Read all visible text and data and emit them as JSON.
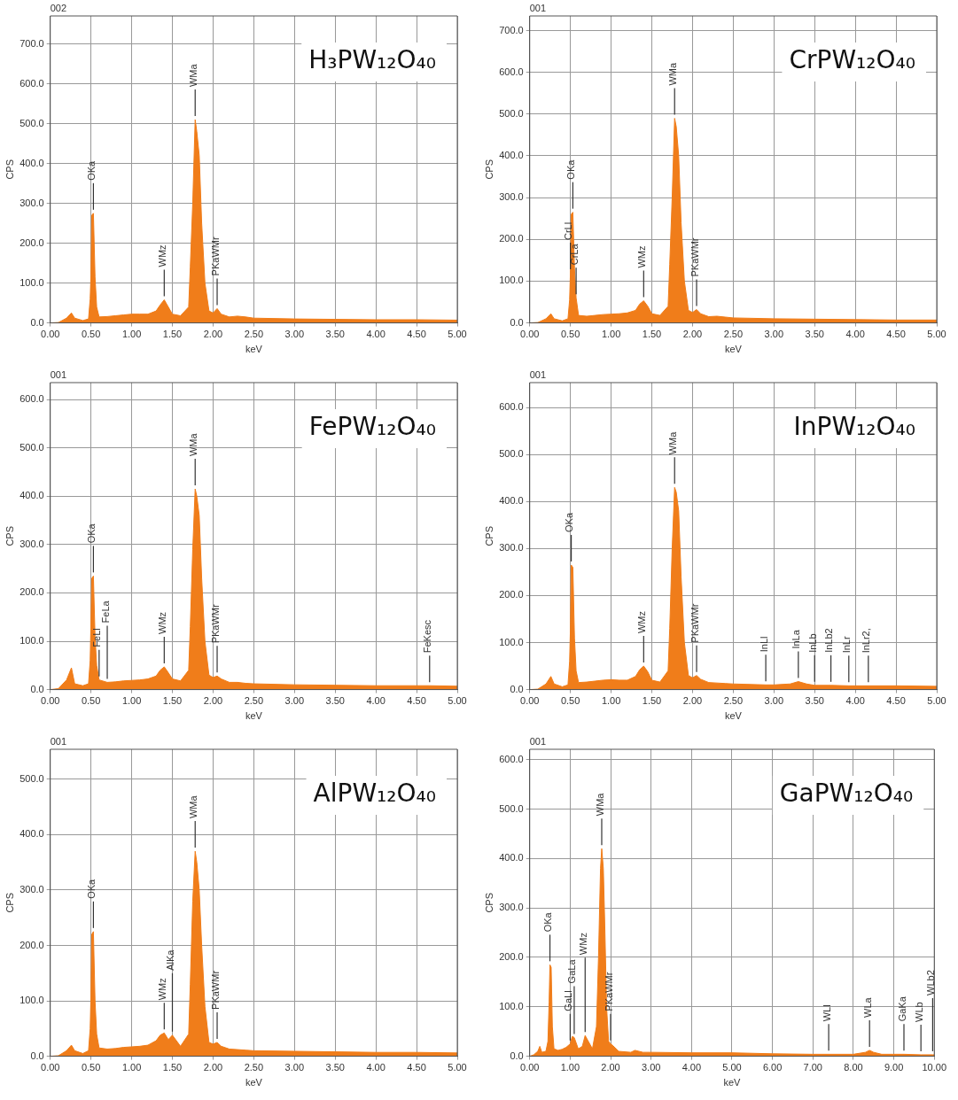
{
  "chart_data": [
    {
      "type": "area",
      "title": "H₃PW₁₂O₄₀",
      "xlabel": "keV",
      "ylabel": "CPS",
      "grid": true,
      "xlim": [
        0,
        5
      ],
      "ylim": [
        0,
        770
      ],
      "xticks": [
        {
          "value": 0,
          "label": "0.00"
        },
        {
          "value": 0.5,
          "label": "0.50"
        },
        {
          "value": 1,
          "label": "1.00"
        },
        {
          "value": 1.5,
          "label": "1.50"
        },
        {
          "value": 2,
          "label": "2.00"
        },
        {
          "value": 2.5,
          "label": "2.50"
        },
        {
          "value": 3,
          "label": "3.00"
        },
        {
          "value": 3.5,
          "label": "3.50"
        },
        {
          "value": 4,
          "label": "4.00"
        },
        {
          "value": 4.5,
          "label": "4.50"
        },
        {
          "value": 5,
          "label": "5.00"
        }
      ],
      "yticks": [
        {
          "value": 0,
          "label": "0.0"
        },
        {
          "value": 100,
          "label": "100.0"
        },
        {
          "value": 200,
          "label": "200.0"
        },
        {
          "value": 300,
          "label": "300.0"
        },
        {
          "value": 400,
          "label": "400.0"
        },
        {
          "value": 500,
          "label": "500.0"
        },
        {
          "value": 600,
          "label": "600.0"
        },
        {
          "value": 700,
          "label": "700.0"
        }
      ],
      "x": [
        0,
        0.1,
        0.2,
        0.26,
        0.3,
        0.4,
        0.47,
        0.49,
        0.5,
        0.51,
        0.53,
        0.55,
        0.57,
        0.6,
        0.7,
        0.8,
        0.9,
        1.0,
        1.1,
        1.2,
        1.3,
        1.35,
        1.4,
        1.45,
        1.5,
        1.6,
        1.7,
        1.72,
        1.75,
        1.78,
        1.8,
        1.83,
        1.86,
        1.9,
        1.95,
        2.0,
        2.05,
        2.1,
        2.2,
        2.3,
        2.4,
        2.5,
        3.0,
        3.5,
        4.0,
        4.5,
        5.0
      ],
      "series": [
        {
          "color": "#f07d1a",
          "values": [
            0,
            1,
            12,
            25,
            12,
            6,
            10,
            60,
            120,
            270,
            275,
            115,
            40,
            15,
            16,
            18,
            20,
            22,
            22,
            22,
            30,
            45,
            58,
            40,
            22,
            18,
            40,
            140,
            300,
            510,
            480,
            420,
            250,
            100,
            30,
            25,
            36,
            22,
            15,
            17,
            15,
            12,
            10,
            9,
            8,
            8,
            7
          ]
        }
      ],
      "annotations": [
        "002",
        {
          "text": "OKa",
          "x": 0.53,
          "y": 275
        },
        {
          "text": "WMz",
          "x": 1.4,
          "y": 58
        },
        {
          "text": "WMa",
          "x": 1.78,
          "y": 510
        },
        {
          "text": "PKaWMr",
          "x": 2.05,
          "y": 36
        }
      ]
    },
    {
      "type": "area",
      "title": "CrPW₁₂O₄₀",
      "xlabel": "keV",
      "ylabel": "CPS",
      "grid": true,
      "xlim": [
        0,
        5
      ],
      "ylim": [
        0,
        735
      ],
      "xticks": [
        {
          "value": 0,
          "label": "0.00"
        },
        {
          "value": 0.5,
          "label": "0.50"
        },
        {
          "value": 1,
          "label": "1.00"
        },
        {
          "value": 1.5,
          "label": "1.50"
        },
        {
          "value": 2,
          "label": "2.00"
        },
        {
          "value": 2.5,
          "label": "2.50"
        },
        {
          "value": 3,
          "label": "3.00"
        },
        {
          "value": 3.5,
          "label": "3.50"
        },
        {
          "value": 4,
          "label": "4.00"
        },
        {
          "value": 4.5,
          "label": "4.50"
        },
        {
          "value": 5,
          "label": "5.00"
        }
      ],
      "yticks": [
        {
          "value": 0,
          "label": "0.0"
        },
        {
          "value": 100,
          "label": "100.0"
        },
        {
          "value": 200,
          "label": "200.0"
        },
        {
          "value": 300,
          "label": "300.0"
        },
        {
          "value": 400,
          "label": "400.0"
        },
        {
          "value": 500,
          "label": "500.0"
        },
        {
          "value": 600,
          "label": "600.0"
        },
        {
          "value": 700,
          "label": "700.0"
        }
      ],
      "x": [
        0,
        0.1,
        0.2,
        0.26,
        0.3,
        0.4,
        0.47,
        0.49,
        0.5,
        0.51,
        0.53,
        0.55,
        0.57,
        0.6,
        0.7,
        0.8,
        0.9,
        1.0,
        1.1,
        1.2,
        1.3,
        1.35,
        1.4,
        1.45,
        1.5,
        1.6,
        1.7,
        1.72,
        1.75,
        1.78,
        1.8,
        1.83,
        1.86,
        1.9,
        1.95,
        2.0,
        2.05,
        2.1,
        2.2,
        2.3,
        2.4,
        2.5,
        3.0,
        3.5,
        4.0,
        4.5,
        5.0
      ],
      "series": [
        {
          "color": "#f07d1a",
          "values": [
            0,
            1,
            10,
            22,
            10,
            5,
            10,
            55,
            120,
            260,
            265,
            130,
            60,
            18,
            16,
            18,
            20,
            21,
            22,
            24,
            30,
            45,
            53,
            40,
            22,
            18,
            40,
            140,
            300,
            490,
            470,
            400,
            240,
            100,
            30,
            25,
            32,
            22,
            15,
            16,
            14,
            12,
            10,
            9,
            8,
            7,
            7
          ]
        }
      ],
      "annotations": [
        "001",
        {
          "text": "CrLa",
          "x": 0.57,
          "y": 60
        },
        {
          "text": "CrLl",
          "x": 0.5,
          "y": 120
        },
        {
          "text": "OKa",
          "x": 0.53,
          "y": 265
        },
        {
          "text": "WMz",
          "x": 1.4,
          "y": 53
        },
        {
          "text": "WMa",
          "x": 1.78,
          "y": 490
        },
        {
          "text": "PKaWMr",
          "x": 2.05,
          "y": 32
        }
      ]
    },
    {
      "type": "area",
      "title": "FePW₁₂O₄₀",
      "xlabel": "keV",
      "ylabel": "CPS",
      "grid": true,
      "xlim": [
        0,
        5
      ],
      "ylim": [
        0,
        635
      ],
      "xticks": [
        {
          "value": 0,
          "label": "0.00"
        },
        {
          "value": 0.5,
          "label": "0.50"
        },
        {
          "value": 1,
          "label": "1.00"
        },
        {
          "value": 1.5,
          "label": "1.50"
        },
        {
          "value": 2,
          "label": "2.00"
        },
        {
          "value": 2.5,
          "label": "2.50"
        },
        {
          "value": 3,
          "label": "3.00"
        },
        {
          "value": 3.5,
          "label": "3.50"
        },
        {
          "value": 4,
          "label": "4.00"
        },
        {
          "value": 4.5,
          "label": "4.50"
        },
        {
          "value": 5,
          "label": "5.00"
        }
      ],
      "yticks": [
        {
          "value": 0,
          "label": "0.0"
        },
        {
          "value": 100,
          "label": "100.0"
        },
        {
          "value": 200,
          "label": "200.0"
        },
        {
          "value": 300,
          "label": "300.0"
        },
        {
          "value": 400,
          "label": "400.0"
        },
        {
          "value": 500,
          "label": "500.0"
        },
        {
          "value": 600,
          "label": "600.0"
        }
      ],
      "x": [
        0,
        0.1,
        0.2,
        0.26,
        0.3,
        0.4,
        0.47,
        0.49,
        0.5,
        0.51,
        0.53,
        0.55,
        0.57,
        0.6,
        0.7,
        0.8,
        0.9,
        1.0,
        1.1,
        1.2,
        1.3,
        1.35,
        1.4,
        1.45,
        1.5,
        1.6,
        1.7,
        1.72,
        1.75,
        1.78,
        1.8,
        1.83,
        1.86,
        1.9,
        1.95,
        2.0,
        2.05,
        2.1,
        2.2,
        2.3,
        2.4,
        2.5,
        3.0,
        3.5,
        4.0,
        4.5,
        4.66,
        5.0
      ],
      "series": [
        {
          "color": "#f07d1a",
          "values": [
            0,
            2,
            20,
            45,
            12,
            8,
            12,
            60,
            140,
            230,
            235,
            110,
            50,
            20,
            15,
            16,
            18,
            19,
            20,
            22,
            28,
            40,
            47,
            35,
            22,
            18,
            40,
            130,
            290,
            415,
            400,
            360,
            230,
            100,
            30,
            25,
            28,
            22,
            15,
            15,
            13,
            12,
            10,
            9,
            8,
            8,
            8,
            7
          ]
        }
      ],
      "annotations": [
        "001",
        {
          "text": "OKa",
          "x": 0.53,
          "y": 235
        },
        {
          "text": "FeLl",
          "x": 0.6,
          "y": 20
        },
        {
          "text": "FeLa",
          "x": 0.7,
          "y": 15
        },
        {
          "text": "WMz",
          "x": 1.4,
          "y": 47
        },
        {
          "text": "WMa",
          "x": 1.78,
          "y": 415
        },
        {
          "text": "PKaWMr",
          "x": 2.05,
          "y": 28
        },
        {
          "text": "FeKesc",
          "x": 4.66,
          "y": 8
        }
      ]
    },
    {
      "type": "area",
      "title": "InPW₁₂O₄₀",
      "xlabel": "keV",
      "ylabel": "CPS",
      "grid": true,
      "xlim": [
        0,
        5
      ],
      "ylim": [
        0,
        653
      ],
      "xticks": [
        {
          "value": 0,
          "label": "0.00"
        },
        {
          "value": 0.5,
          "label": "0.50"
        },
        {
          "value": 1,
          "label": "1.00"
        },
        {
          "value": 1.5,
          "label": "1.50"
        },
        {
          "value": 2,
          "label": "2.00"
        },
        {
          "value": 2.5,
          "label": "2.50"
        },
        {
          "value": 3,
          "label": "3.00"
        },
        {
          "value": 3.5,
          "label": "3.50"
        },
        {
          "value": 4,
          "label": "4.00"
        },
        {
          "value": 4.5,
          "label": "4.50"
        },
        {
          "value": 5,
          "label": "5.00"
        }
      ],
      "yticks": [
        {
          "value": 0,
          "label": "0.0"
        },
        {
          "value": 100,
          "label": "100.0"
        },
        {
          "value": 200,
          "label": "200.0"
        },
        {
          "value": 300,
          "label": "300.0"
        },
        {
          "value": 400,
          "label": "400.0"
        },
        {
          "value": 500,
          "label": "500.0"
        },
        {
          "value": 600,
          "label": "600.0"
        }
      ],
      "x": [
        0,
        0.1,
        0.2,
        0.26,
        0.3,
        0.4,
        0.47,
        0.49,
        0.5,
        0.51,
        0.53,
        0.55,
        0.57,
        0.6,
        0.7,
        0.8,
        0.9,
        1.0,
        1.1,
        1.2,
        1.3,
        1.35,
        1.4,
        1.45,
        1.5,
        1.6,
        1.7,
        1.72,
        1.75,
        1.78,
        1.8,
        1.83,
        1.86,
        1.9,
        1.95,
        2.0,
        2.05,
        2.1,
        2.2,
        2.3,
        2.4,
        2.5,
        2.9,
        3.0,
        3.2,
        3.3,
        3.4,
        3.5,
        3.7,
        3.92,
        4.0,
        4.16,
        4.5,
        5.0
      ],
      "series": [
        {
          "color": "#f07d1a",
          "values": [
            0,
            1,
            12,
            28,
            12,
            6,
            10,
            60,
            130,
            265,
            260,
            110,
            40,
            15,
            16,
            18,
            20,
            21,
            20,
            20,
            28,
            42,
            50,
            38,
            20,
            16,
            40,
            130,
            300,
            430,
            420,
            380,
            240,
            100,
            30,
            25,
            30,
            22,
            15,
            14,
            13,
            12,
            10,
            10,
            12,
            17,
            12,
            9,
            9,
            8,
            8,
            8,
            8,
            7
          ]
        }
      ],
      "annotations": [
        "001",
        {
          "text": "OKa",
          "x": 0.51,
          "y": 265
        },
        {
          "text": "WMz",
          "x": 1.4,
          "y": 50
        },
        {
          "text": "WMa",
          "x": 1.78,
          "y": 430
        },
        {
          "text": "PKaWMr",
          "x": 2.05,
          "y": 30
        },
        {
          "text": "InLl",
          "x": 2.9,
          "y": 10
        },
        {
          "text": "InLa",
          "x": 3.3,
          "y": 17
        },
        {
          "text": "InLb",
          "x": 3.5,
          "y": 9
        },
        {
          "text": "InLb2",
          "x": 3.7,
          "y": 9
        },
        {
          "text": "InLr",
          "x": 3.92,
          "y": 8
        },
        {
          "text": "InLr2,",
          "x": 4.16,
          "y": 8
        }
      ]
    },
    {
      "type": "area",
      "title": "AlPW₁₂O₄₀",
      "xlabel": "keV",
      "ylabel": "CPS",
      "grid": true,
      "xlim": [
        0,
        5
      ],
      "ylim": [
        0,
        554
      ],
      "xticks": [
        {
          "value": 0,
          "label": "0.00"
        },
        {
          "value": 0.5,
          "label": "0.50"
        },
        {
          "value": 1,
          "label": "1.00"
        },
        {
          "value": 1.5,
          "label": "1.50"
        },
        {
          "value": 2,
          "label": "2.00"
        },
        {
          "value": 2.5,
          "label": "2.50"
        },
        {
          "value": 3,
          "label": "3.00"
        },
        {
          "value": 3.5,
          "label": "3.50"
        },
        {
          "value": 4,
          "label": "4.00"
        },
        {
          "value": 4.5,
          "label": "4.50"
        },
        {
          "value": 5,
          "label": "5.00"
        }
      ],
      "yticks": [
        {
          "value": 0,
          "label": "0.0"
        },
        {
          "value": 100,
          "label": "100.0"
        },
        {
          "value": 200,
          "label": "200.0"
        },
        {
          "value": 300,
          "label": "300.0"
        },
        {
          "value": 400,
          "label": "400.0"
        },
        {
          "value": 500,
          "label": "500.0"
        }
      ],
      "x": [
        0,
        0.1,
        0.2,
        0.26,
        0.3,
        0.4,
        0.47,
        0.49,
        0.5,
        0.51,
        0.53,
        0.55,
        0.57,
        0.6,
        0.7,
        0.8,
        0.9,
        1.0,
        1.1,
        1.2,
        1.3,
        1.35,
        1.4,
        1.45,
        1.5,
        1.6,
        1.7,
        1.72,
        1.75,
        1.78,
        1.8,
        1.83,
        1.86,
        1.9,
        1.95,
        2.0,
        2.05,
        2.1,
        2.2,
        2.3,
        2.4,
        2.5,
        3.0,
        3.5,
        4.0,
        4.5,
        5.0
      ],
      "series": [
        {
          "color": "#f07d1a",
          "values": [
            0,
            1,
            10,
            20,
            10,
            5,
            10,
            50,
            110,
            220,
            225,
            100,
            40,
            15,
            13,
            14,
            16,
            17,
            18,
            20,
            28,
            38,
            42,
            30,
            38,
            18,
            40,
            130,
            280,
            370,
            350,
            300,
            200,
            90,
            25,
            22,
            25,
            18,
            13,
            12,
            11,
            10,
            9,
            8,
            7,
            7,
            6
          ]
        }
      ],
      "annotations": [
        "001",
        {
          "text": "OKa",
          "x": 0.53,
          "y": 225
        },
        {
          "text": "WMz",
          "x": 1.4,
          "y": 42
        },
        {
          "text": "AlKa",
          "x": 1.5,
          "y": 38
        },
        {
          "text": "WMa",
          "x": 1.78,
          "y": 370
        },
        {
          "text": "PKaWMr",
          "x": 2.05,
          "y": 25
        }
      ]
    },
    {
      "type": "area",
      "title": "GaPW₁₂O₄₀",
      "xlabel": "keV",
      "ylabel": "CPS",
      "grid": true,
      "xlim": [
        0,
        10
      ],
      "ylim": [
        0,
        621
      ],
      "xticks": [
        {
          "value": 0,
          "label": "0.00"
        },
        {
          "value": 1,
          "label": "1.00"
        },
        {
          "value": 2,
          "label": "2.00"
        },
        {
          "value": 3,
          "label": "3.00"
        },
        {
          "value": 4,
          "label": "4.00"
        },
        {
          "value": 5,
          "label": "5.00"
        },
        {
          "value": 6,
          "label": "6.00"
        },
        {
          "value": 7,
          "label": "7.00"
        },
        {
          "value": 8,
          "label": "8.00"
        },
        {
          "value": 9,
          "label": "9.00"
        },
        {
          "value": 10,
          "label": "10.00"
        }
      ],
      "yticks": [
        {
          "value": 0,
          "label": "0.0"
        },
        {
          "value": 100,
          "label": "100.0"
        },
        {
          "value": 200,
          "label": "200.0"
        },
        {
          "value": 300,
          "label": "300.0"
        },
        {
          "value": 400,
          "label": "400.0"
        },
        {
          "value": 500,
          "label": "500.0"
        },
        {
          "value": 600,
          "label": "600.0"
        }
      ],
      "x": [
        0,
        0.1,
        0.2,
        0.25,
        0.3,
        0.4,
        0.45,
        0.48,
        0.5,
        0.53,
        0.56,
        0.6,
        0.7,
        0.8,
        0.9,
        1.0,
        1.05,
        1.1,
        1.2,
        1.3,
        1.37,
        1.45,
        1.55,
        1.65,
        1.7,
        1.75,
        1.78,
        1.82,
        1.86,
        1.9,
        1.95,
        2.0,
        2.05,
        2.2,
        2.5,
        2.6,
        2.8,
        3.0,
        4.0,
        5.0,
        6.0,
        7.0,
        7.39,
        8.0,
        8.3,
        8.4,
        8.5,
        8.7,
        9.0,
        9.25,
        9.67,
        9.96,
        10.0
      ],
      "series": [
        {
          "color": "#f07d1a",
          "values": [
            0,
            3,
            10,
            20,
            8,
            10,
            30,
            110,
            185,
            180,
            60,
            15,
            12,
            14,
            18,
            25,
            40,
            38,
            15,
            20,
            42,
            30,
            15,
            60,
            200,
            380,
            420,
            380,
            250,
            100,
            30,
            25,
            22,
            10,
            8,
            12,
            8,
            8,
            7,
            7,
            5,
            4,
            4,
            4,
            8,
            12,
            8,
            4,
            4,
            4,
            3,
            3,
            3
          ]
        }
      ],
      "annotations": [
        "001",
        {
          "text": "OKa",
          "x": 0.5,
          "y": 185
        },
        {
          "text": "GaLl",
          "x": 1.0,
          "y": 25
        },
        {
          "text": "GaLa",
          "x": 1.1,
          "y": 38
        },
        {
          "text": "WMz",
          "x": 1.37,
          "y": 42
        },
        {
          "text": "WMa",
          "x": 1.78,
          "y": 420
        },
        {
          "text": "PKaWMr",
          "x": 2.0,
          "y": 25
        },
        {
          "text": "WLl",
          "x": 7.39,
          "y": 4
        },
        {
          "text": "WLa",
          "x": 8.4,
          "y": 12
        },
        {
          "text": "GaKa",
          "x": 9.25,
          "y": 4
        },
        {
          "text": "WLb",
          "x": 9.67,
          "y": 3
        },
        {
          "text": "WLb2",
          "x": 9.96,
          "y": 3
        }
      ]
    }
  ]
}
